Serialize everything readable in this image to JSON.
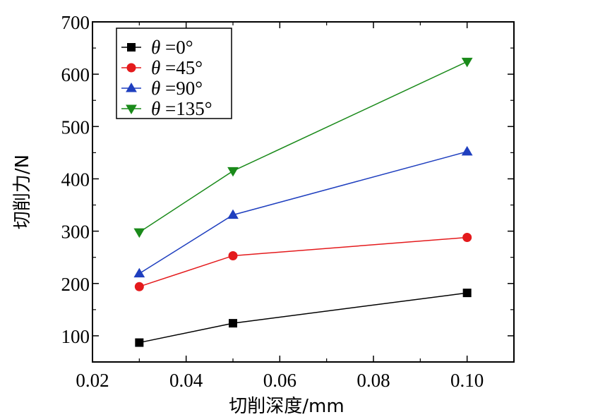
{
  "chart_data": {
    "type": "line",
    "xlabel": "切削深度/mm",
    "ylabel": "切削力/N",
    "xlim": [
      0.02,
      0.11
    ],
    "ylim": [
      50,
      700
    ],
    "x_ticks": [
      0.02,
      0.04,
      0.06,
      0.08,
      0.1
    ],
    "x_tick_labels": [
      "0.02",
      "0.04",
      "0.06",
      "0.08",
      "0.10"
    ],
    "y_ticks": [
      100,
      200,
      300,
      400,
      500,
      600,
      700
    ],
    "y_tick_labels": [
      "100",
      "200",
      "300",
      "400",
      "500",
      "600",
      "700"
    ],
    "grid": false,
    "legend_position": "top-left",
    "x": [
      0.03,
      0.05,
      0.1
    ],
    "series": [
      {
        "name": "θ =0°",
        "symbol": "θ",
        "suffix": " =0°",
        "values": [
          87,
          124,
          182
        ],
        "color": "#000000",
        "marker": "square"
      },
      {
        "name": "θ =45°",
        "symbol": "θ",
        "suffix": " =45°",
        "values": [
          194,
          253,
          288
        ],
        "color": "#e41a1c",
        "marker": "circle"
      },
      {
        "name": "θ =90°",
        "symbol": "θ",
        "suffix": " =90°",
        "values": [
          219,
          331,
          452
        ],
        "color": "#1f3fbf",
        "marker": "triangle-up"
      },
      {
        "name": "θ =135°",
        "symbol": "θ",
        "suffix": " =135°",
        "values": [
          298,
          415,
          624
        ],
        "color": "#1a8a1a",
        "marker": "triangle-down"
      }
    ]
  }
}
